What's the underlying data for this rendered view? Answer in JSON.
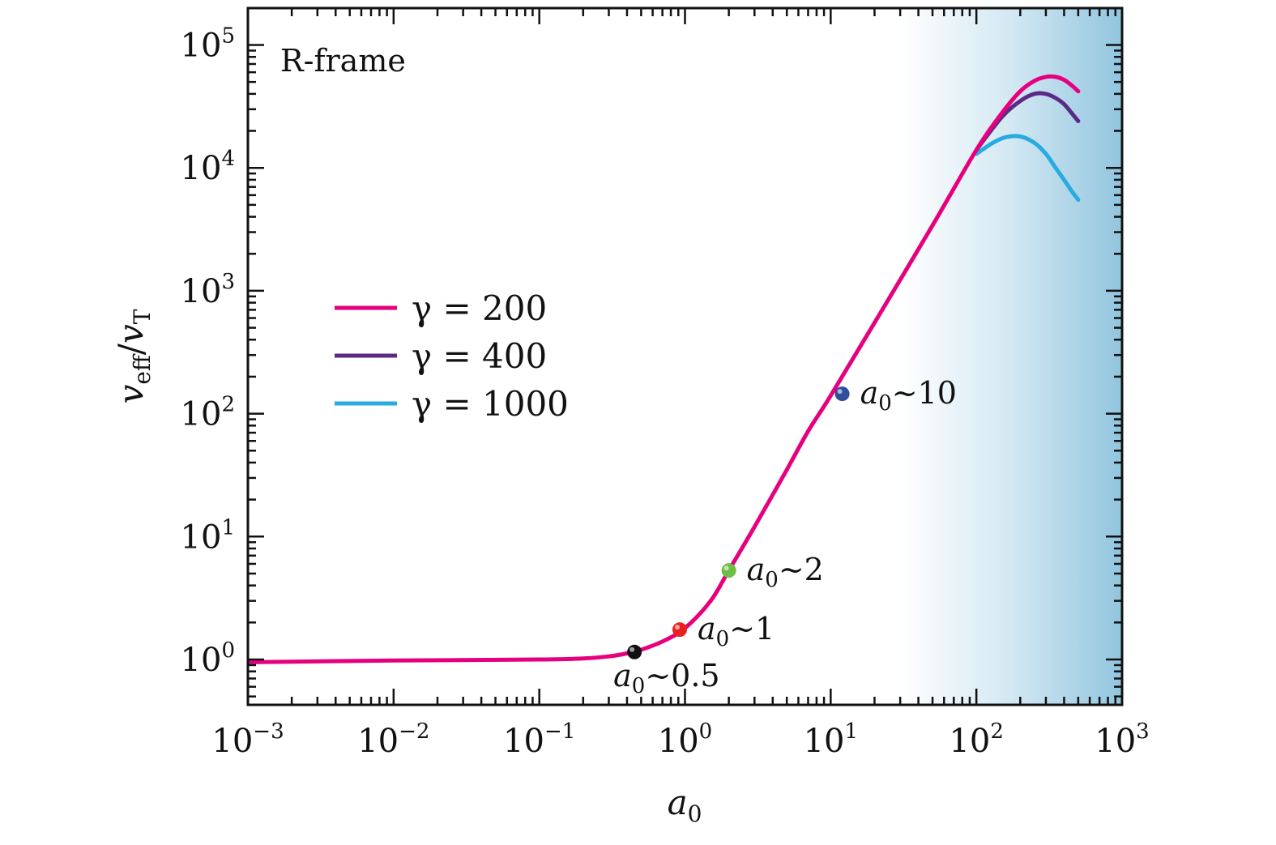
{
  "chart_data": {
    "type": "line",
    "panel_label": "R-frame",
    "xlabel": {
      "main": "a",
      "sub": "0"
    },
    "ylabel": {
      "main": "v",
      "sub1": "eff",
      "sep": "/",
      "main2": "v",
      "sub2": "T"
    },
    "x_scale": "log",
    "y_scale": "log",
    "xlim": [
      0.001,
      1000
    ],
    "ylim": [
      0.5,
      200000
    ],
    "grid": false,
    "legend_position": "center-left",
    "x_ticks": [
      {
        "base": "10",
        "exp": "−3",
        "value": 0.001
      },
      {
        "base": "10",
        "exp": "−2",
        "value": 0.01
      },
      {
        "base": "10",
        "exp": "−1",
        "value": 0.1
      },
      {
        "base": "10",
        "exp": "0",
        "value": 1
      },
      {
        "base": "10",
        "exp": "1",
        "value": 10
      },
      {
        "base": "10",
        "exp": "2",
        "value": 100
      },
      {
        "base": "10",
        "exp": "3",
        "value": 1000
      }
    ],
    "y_ticks": [
      {
        "base": "10",
        "exp": "0",
        "value": 1
      },
      {
        "base": "10",
        "exp": "1",
        "value": 10
      },
      {
        "base": "10",
        "exp": "2",
        "value": 100
      },
      {
        "base": "10",
        "exp": "3",
        "value": 1000
      },
      {
        "base": "10",
        "exp": "4",
        "value": 10000
      },
      {
        "base": "10",
        "exp": "5",
        "value": 100000
      }
    ],
    "shaded_region": {
      "x_start": 30,
      "x_end": 1000,
      "color_start": "#ffffff",
      "color_end": "#92c5df"
    },
    "series": [
      {
        "name": "γ = 200",
        "color": "#e6007e",
        "x": [
          0.001,
          0.01,
          0.1,
          0.2,
          0.3,
          0.4,
          0.5,
          0.7,
          1,
          1.5,
          2,
          3,
          5,
          7,
          10,
          20,
          50,
          100,
          150,
          200,
          250,
          300,
          350,
          400,
          450,
          500
        ],
        "y": [
          0.95,
          0.98,
          1.0,
          1.02,
          1.06,
          1.12,
          1.2,
          1.4,
          1.8,
          3.0,
          5.3,
          12,
          35,
          72,
          140,
          550,
          3400,
          14000,
          28000,
          42000,
          51000,
          55000,
          55000,
          52000,
          47000,
          42000
        ]
      },
      {
        "name": "γ = 400",
        "color": "#5b2a86",
        "x": [
          100,
          150,
          200,
          250,
          300,
          350,
          400,
          450,
          500
        ],
        "y": [
          14000,
          26000,
          35000,
          40000,
          40000,
          37000,
          33000,
          28000,
          24000
        ]
      },
      {
        "name": "γ = 1000",
        "color": "#29aae1",
        "x": [
          100,
          130,
          160,
          200,
          250,
          300,
          350,
          400,
          450,
          500
        ],
        "y": [
          13000,
          16000,
          17800,
          18000,
          16000,
          13000,
          10000,
          8000,
          6500,
          5500
        ]
      }
    ],
    "annotations": [
      {
        "label": "a",
        "sub": "0",
        "rest": "∼0.5",
        "x": 0.45,
        "y": 1.15,
        "color": "#111111",
        "placement": "below"
      },
      {
        "label": "a",
        "sub": "0",
        "rest": "∼1",
        "x": 0.92,
        "y": 1.75,
        "color": "#e8231f",
        "placement": "right"
      },
      {
        "label": "a",
        "sub": "0",
        "rest": "∼2",
        "x": 2.0,
        "y": 5.3,
        "color": "#6cbe45",
        "placement": "right"
      },
      {
        "label": "a",
        "sub": "0",
        "rest": "∼10",
        "x": 12,
        "y": 145,
        "color": "#2f4e9e",
        "placement": "right"
      }
    ]
  }
}
